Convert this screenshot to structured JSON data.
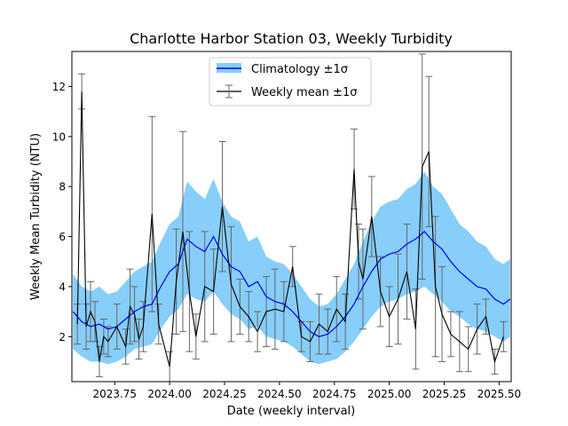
{
  "chart_data": {
    "type": "line",
    "title": "Charlotte Harbor Station 03, Weekly Turbidity",
    "xlabel": "Date (weekly interval)",
    "ylabel": "Weekly Mean Turbidity (NTU)",
    "xlim": [
      2023.555,
      2025.555
    ],
    "ylim": [
      0.2,
      13.4
    ],
    "xticks": [
      2023.75,
      2024.0,
      2024.25,
      2024.5,
      2024.75,
      2025.0,
      2025.25,
      2025.5
    ],
    "xtick_labels": [
      "2023.75",
      "2024.00",
      "2024.25",
      "2024.50",
      "2024.75",
      "2025.00",
      "2025.25",
      "2025.50"
    ],
    "yticks": [
      2,
      4,
      6,
      8,
      10,
      12
    ],
    "ytick_labels": [
      "2",
      "4",
      "6",
      "8",
      "10",
      "12"
    ],
    "grid": false,
    "legend_position": "top-center",
    "legend": [
      {
        "label": "Climatology ±1σ",
        "color": "#0000ff",
        "fill": "#87cefa"
      },
      {
        "label": "Weekly mean ±1σ",
        "color": "#000000"
      }
    ],
    "series": [
      {
        "role": "climatology",
        "x": [
          2023.56,
          2023.6,
          2023.64,
          2023.68,
          2023.72,
          2023.76,
          2023.8,
          2023.84,
          2023.88,
          2023.92,
          2023.96,
          2024.0,
          2024.04,
          2024.08,
          2024.12,
          2024.16,
          2024.2,
          2024.24,
          2024.28,
          2024.32,
          2024.36,
          2024.4,
          2024.44,
          2024.48,
          2024.52,
          2024.56,
          2024.6,
          2024.64,
          2024.68,
          2024.72,
          2024.76,
          2024.8,
          2024.84,
          2024.88,
          2024.92,
          2024.96,
          2025.0,
          2025.04,
          2025.08,
          2025.12,
          2025.16,
          2025.2,
          2025.24,
          2025.28,
          2025.32,
          2025.36,
          2025.4,
          2025.44,
          2025.48,
          2025.52,
          2025.55
        ],
        "mean": [
          3.0,
          2.6,
          2.4,
          2.5,
          2.3,
          2.4,
          2.7,
          3.0,
          3.2,
          3.3,
          4.0,
          4.6,
          4.9,
          5.9,
          5.6,
          5.4,
          6.0,
          5.3,
          4.8,
          4.6,
          4.0,
          4.2,
          3.6,
          3.4,
          3.3,
          3.0,
          2.6,
          2.2,
          2.0,
          2.1,
          2.4,
          2.8,
          3.3,
          4.0,
          4.6,
          5.1,
          5.3,
          5.4,
          5.7,
          5.9,
          6.2,
          5.8,
          5.5,
          5.0,
          4.6,
          4.3,
          4.0,
          3.9,
          3.5,
          3.3,
          3.5
        ],
        "lower": [
          1.5,
          1.2,
          1.0,
          1.0,
          0.9,
          1.0,
          1.2,
          1.5,
          1.6,
          1.7,
          2.3,
          2.8,
          3.1,
          3.7,
          3.5,
          3.4,
          3.8,
          3.3,
          2.9,
          2.7,
          2.3,
          2.4,
          2.0,
          1.9,
          1.8,
          1.6,
          1.3,
          1.0,
          0.9,
          1.0,
          1.1,
          1.4,
          1.8,
          2.3,
          2.8,
          3.2,
          3.4,
          3.5,
          3.7,
          3.8,
          4.0,
          3.7,
          3.4,
          3.0,
          2.8,
          2.5,
          2.3,
          2.2,
          2.0,
          1.8,
          2.0
        ],
        "upper": [
          4.5,
          4.0,
          3.8,
          4.0,
          3.7,
          3.8,
          4.2,
          4.6,
          4.8,
          5.0,
          5.8,
          6.5,
          6.8,
          8.2,
          7.8,
          7.5,
          8.3,
          7.4,
          6.8,
          6.6,
          5.8,
          6.0,
          5.2,
          5.0,
          4.9,
          4.5,
          4.0,
          3.5,
          3.2,
          3.3,
          3.7,
          4.3,
          4.9,
          5.8,
          6.6,
          7.2,
          7.4,
          7.5,
          7.9,
          8.1,
          8.6,
          8.0,
          7.7,
          7.1,
          6.5,
          6.2,
          5.8,
          5.6,
          5.1,
          4.9,
          5.1
        ]
      },
      {
        "role": "weekly",
        "x": [
          2023.58,
          2023.6,
          2023.62,
          2023.64,
          2023.66,
          2023.68,
          2023.7,
          2023.72,
          2023.76,
          2023.8,
          2023.82,
          2023.84,
          2023.86,
          2023.88,
          2023.92,
          2023.95,
          2024.0,
          2024.03,
          2024.06,
          2024.09,
          2024.12,
          2024.16,
          2024.2,
          2024.24,
          2024.28,
          2024.32,
          2024.36,
          2024.4,
          2024.44,
          2024.48,
          2024.52,
          2024.56,
          2024.6,
          2024.64,
          2024.68,
          2024.72,
          2024.76,
          2024.8,
          2024.84,
          2024.86,
          2024.88,
          2024.92,
          2024.96,
          2025.0,
          2025.04,
          2025.08,
          2025.12,
          2025.15,
          2025.18,
          2025.21,
          2025.24,
          2025.28,
          2025.32,
          2025.36,
          2025.4,
          2025.44,
          2025.48,
          2025.52
        ],
        "y": [
          2.5,
          11.8,
          2.4,
          3.0,
          2.6,
          1.0,
          2.0,
          1.8,
          2.4,
          1.6,
          3.2,
          2.9,
          1.9,
          2.4,
          6.9,
          2.5,
          0.8,
          4.2,
          6.2,
          3.8,
          2.0,
          4.0,
          3.8,
          7.2,
          4.1,
          3.2,
          2.8,
          2.2,
          3.0,
          3.1,
          3.0,
          4.8,
          2.0,
          1.8,
          2.5,
          2.2,
          3.1,
          2.6,
          8.7,
          5.0,
          4.3,
          6.8,
          3.8,
          2.8,
          3.5,
          4.6,
          2.3,
          8.8,
          9.4,
          4.0,
          2.9,
          2.1,
          1.8,
          1.5,
          2.3,
          2.8,
          1.0,
          2.0
        ],
        "std": [
          0.8,
          0.7,
          0.9,
          1.2,
          0.8,
          0.6,
          0.7,
          0.6,
          0.9,
          0.7,
          1.5,
          1.1,
          0.8,
          1.0,
          3.9,
          0.8,
          0.6,
          2.1,
          4.0,
          2.4,
          0.9,
          2.2,
          1.7,
          2.6,
          2.3,
          1.1,
          1.0,
          0.8,
          1.4,
          1.6,
          1.2,
          0.8,
          0.6,
          0.8,
          1.2,
          0.9,
          1.3,
          1.1,
          1.6,
          1.5,
          2.0,
          1.6,
          1.4,
          1.2,
          1.8,
          1.9,
          1.6,
          4.5,
          3.0,
          2.8,
          1.9,
          0.9,
          1.2,
          0.9,
          1.0,
          0.7,
          0.5,
          0.6
        ]
      }
    ]
  }
}
